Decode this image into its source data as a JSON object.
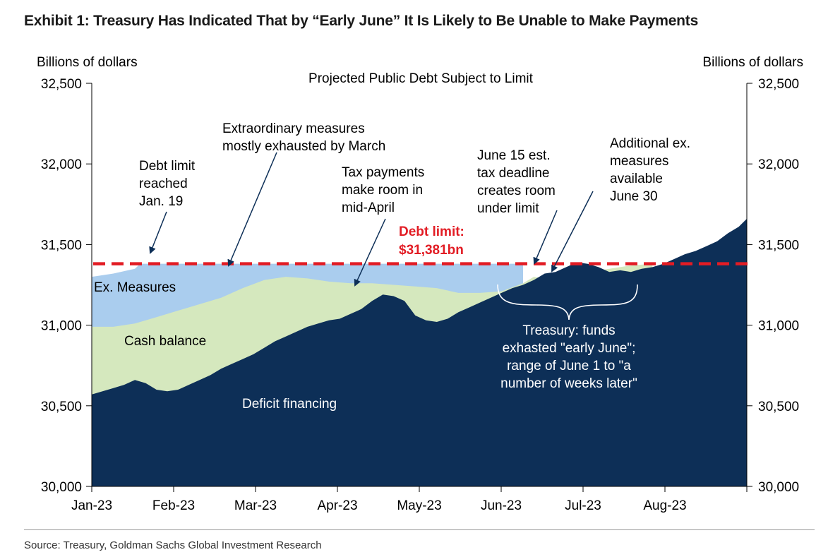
{
  "title": "Exhibit 1: Treasury Has Indicated That by “Early June” It Is Likely to Be Unable to Make Payments",
  "source": "Source: Treasury, Goldman Sachs Global Investment Research",
  "colors": {
    "deficit": "#0d2f57",
    "cash": "#d5e8be",
    "ex_measures": "#aacdee",
    "debt_limit": "#e21c24"
  },
  "chart_data": {
    "type": "area",
    "title": "Projected Public Debt Subject to Limit",
    "ylabel_left": "Billions of dollars",
    "ylabel_right": "Billions of dollars",
    "ylim": [
      30000,
      32500
    ],
    "y_ticks": [
      "30,000",
      "30,500",
      "31,000",
      "31,500",
      "32,000",
      "32,500"
    ],
    "x_ticks": [
      "Jan-23",
      "Feb-23",
      "Mar-23",
      "Apr-23",
      "May-23",
      "Jun-23",
      "Jul-23",
      "Aug-23"
    ],
    "x_range": [
      "2023-01-01",
      "2023-09-01"
    ],
    "debt_limit": {
      "value": 31381,
      "label_line1": "Debt limit:",
      "label_line2": "$31,381bn"
    },
    "series": [
      {
        "name": "Deficit financing",
        "dates": [
          "2023-01-01",
          "2023-01-05",
          "2023-01-09",
          "2023-01-13",
          "2023-01-17",
          "2023-01-21",
          "2023-01-25",
          "2023-01-29",
          "2023-02-02",
          "2023-02-06",
          "2023-02-10",
          "2023-02-14",
          "2023-02-18",
          "2023-02-22",
          "2023-02-26",
          "2023-03-02",
          "2023-03-06",
          "2023-03-10",
          "2023-03-14",
          "2023-03-18",
          "2023-03-22",
          "2023-03-26",
          "2023-03-30",
          "2023-04-03",
          "2023-04-07",
          "2023-04-11",
          "2023-04-15",
          "2023-04-19",
          "2023-04-23",
          "2023-04-27",
          "2023-05-01",
          "2023-05-05",
          "2023-05-09",
          "2023-05-13",
          "2023-05-17",
          "2023-05-21",
          "2023-05-25",
          "2023-05-29",
          "2023-06-02",
          "2023-06-06",
          "2023-06-10",
          "2023-06-14",
          "2023-06-18",
          "2023-06-22",
          "2023-06-26",
          "2023-06-30",
          "2023-07-04",
          "2023-07-08",
          "2023-07-12",
          "2023-07-16",
          "2023-07-20",
          "2023-07-24",
          "2023-07-28",
          "2023-08-01",
          "2023-08-05",
          "2023-08-09",
          "2023-08-13",
          "2023-08-17",
          "2023-08-21",
          "2023-08-25",
          "2023-08-29",
          "2023-09-01"
        ],
        "values": [
          30570,
          30590,
          30610,
          30630,
          30660,
          30640,
          30600,
          30590,
          30600,
          30630,
          30660,
          30690,
          30730,
          30760,
          30790,
          30820,
          30860,
          30900,
          30930,
          30960,
          30990,
          31010,
          31030,
          31040,
          31070,
          31100,
          31150,
          31190,
          31180,
          31150,
          31060,
          31030,
          31020,
          31040,
          31080,
          31110,
          31140,
          31170,
          31200,
          31230,
          31250,
          31280,
          31320,
          31330,
          31360,
          31390,
          31380,
          31360,
          31330,
          31340,
          31330,
          31350,
          31360,
          31380,
          31410,
          31440,
          31460,
          31490,
          31520,
          31570,
          31610,
          31660
        ]
      },
      {
        "name": "Cash balance",
        "dates": [
          "2023-01-01",
          "2023-01-09",
          "2023-01-17",
          "2023-01-25",
          "2023-02-02",
          "2023-02-10",
          "2023-02-18",
          "2023-02-26",
          "2023-03-06",
          "2023-03-14",
          "2023-03-22",
          "2023-03-30",
          "2023-04-07",
          "2023-04-15",
          "2023-04-23",
          "2023-05-01",
          "2023-05-09",
          "2023-05-17",
          "2023-05-25",
          "2023-06-02",
          "2023-06-10",
          "2023-06-14",
          "2023-06-18",
          "2023-06-22",
          "2023-06-26",
          "2023-06-30",
          "2023-07-04",
          "2023-07-08",
          "2023-07-12",
          "2023-07-16",
          "2023-07-20",
          "2023-07-24",
          "2023-07-28"
        ],
        "values": [
          30990,
          30990,
          31010,
          31050,
          31090,
          31130,
          31170,
          31230,
          31280,
          31300,
          31290,
          31270,
          31260,
          31260,
          31250,
          31240,
          31230,
          31200,
          31200,
          31210,
          31260,
          31300,
          31290,
          31280,
          31300,
          31310,
          31320,
          31340,
          31350,
          31360,
          31370,
          31375,
          31381
        ]
      },
      {
        "name": "Ex. Measures",
        "dates": [
          "2023-01-01",
          "2023-01-09",
          "2023-01-17",
          "2023-01-19",
          "2023-01-25",
          "2023-02-02",
          "2023-02-10",
          "2023-03-01",
          "2023-03-15",
          "2023-04-01",
          "2023-05-01",
          "2023-06-01",
          "2023-06-10"
        ],
        "values": [
          31300,
          31320,
          31350,
          31381,
          31381,
          31381,
          31381,
          31381,
          31381,
          31381,
          31381,
          31381,
          31381
        ]
      }
    ],
    "annotations": [
      {
        "lines": [
          "Debt limit",
          "reached",
          "Jan. 19"
        ]
      },
      {
        "lines": [
          "Extraordinary measures",
          "mostly exhausted by March"
        ]
      },
      {
        "lines": [
          "Tax payments",
          "make room in",
          "mid-April"
        ]
      },
      {
        "lines": [
          "June 15 est.",
          "tax deadline",
          "creates room",
          "under limit"
        ]
      },
      {
        "lines": [
          "Additional ex.",
          "measures",
          "available",
          "June 30"
        ]
      },
      {
        "lines": [
          "Treasury: funds",
          "exhasted \"early June\";",
          "range of June 1 to \"a",
          "number of weeks later\""
        ]
      }
    ],
    "area_labels": [
      "Ex. Measures",
      "Cash balance",
      "Deficit financing"
    ]
  }
}
